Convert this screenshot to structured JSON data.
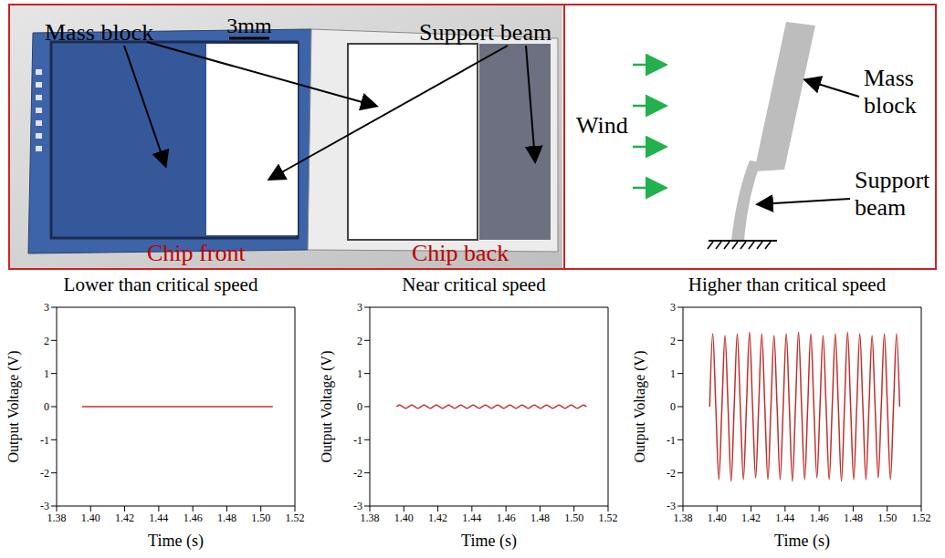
{
  "figure": {
    "photo_labels": {
      "mass_block": "Mass block",
      "scale": "3mm",
      "support_beam": "Support beam",
      "chip_front": "Chip front",
      "chip_back": "Chip back"
    },
    "schematic": {
      "wind": "Wind",
      "mass_block": "Mass block",
      "support_beam": "Support beam"
    }
  },
  "chart_data": [
    {
      "type": "line",
      "title": "Lower than critical speed",
      "x_label": "Time (s)",
      "y_label": "Output Voltage (V)",
      "color": "#c0302b",
      "x": [
        1.395,
        1.507
      ],
      "values": [
        0,
        0
      ],
      "xlim": [
        1.38,
        1.52
      ],
      "ylim": [
        -3,
        3
      ],
      "xticks": [
        1.38,
        {
          "value": 1.4,
          "label": "1.40"
        },
        1.42,
        1.44,
        1.46,
        1.48,
        {
          "value": 1.5,
          "label": "1.50"
        },
        1.52
      ],
      "yticks": [
        -3,
        -2,
        -1,
        0,
        1,
        2,
        3
      ]
    },
    {
      "type": "line",
      "title": "Near critical speed",
      "x_label": "Time (s)",
      "y_label": "Output Voltage (V)",
      "color": "#c0302b",
      "x": [
        1.3957,
        1.3975,
        1.3993,
        1.4011,
        1.4029,
        1.4047,
        1.4065,
        1.4083,
        1.4101,
        1.4119,
        1.4137,
        1.4155,
        1.4173,
        1.4191,
        1.4209,
        1.4227,
        1.4245,
        1.4263,
        1.4281,
        1.4299,
        1.4317,
        1.4335,
        1.4353,
        1.4371,
        1.4389,
        1.4407,
        1.4425,
        1.4443,
        1.4461,
        1.4479,
        1.4497,
        1.4515,
        1.4533,
        1.4551,
        1.4569,
        1.4587,
        1.4605,
        1.4623,
        1.4641,
        1.4659,
        1.4677,
        1.4695,
        1.4713,
        1.4731,
        1.4749,
        1.4767,
        1.4785,
        1.4803,
        1.4821,
        1.4839,
        1.4857,
        1.4875,
        1.4893,
        1.4911,
        1.4929,
        1.4947,
        1.4965,
        1.4983,
        1.5001,
        1.5019,
        1.5037,
        1.5055,
        1.5073
      ],
      "values": [
        0,
        0.05,
        0,
        -0.05,
        0,
        0.05,
        0,
        -0.05,
        0,
        0.05,
        0,
        -0.05,
        0,
        0.05,
        0,
        -0.05,
        0,
        0.05,
        0,
        -0.05,
        0,
        0.05,
        0,
        -0.05,
        0,
        0.05,
        0,
        -0.05,
        0,
        0.05,
        0,
        -0.05,
        0,
        0.05,
        0,
        -0.05,
        0,
        0.05,
        0,
        -0.05,
        0,
        0.05,
        0,
        -0.05,
        0,
        0.05,
        0,
        -0.05,
        0,
        0.05,
        0,
        -0.05,
        0,
        0.05,
        0,
        -0.05,
        0,
        0.05,
        0,
        -0.05,
        0,
        0.05,
        0
      ],
      "xlim": [
        1.38,
        1.52
      ],
      "ylim": [
        -3,
        3
      ],
      "xticks": [
        1.38,
        {
          "value": 1.4,
          "label": "1.40"
        },
        1.42,
        1.44,
        1.46,
        1.48,
        {
          "value": 1.5,
          "label": "1.50"
        },
        1.52
      ],
      "yticks": [
        -3,
        -2,
        -1,
        0,
        1,
        2,
        3
      ]
    },
    {
      "type": "line",
      "title": "Higher than critical speed",
      "x_label": "Time (s)",
      "y_label": "Output Voltage (V)",
      "color": "#c0302b",
      "x": [
        1.3957,
        1.3975,
        1.3993,
        1.4011,
        1.4029,
        1.4047,
        1.4065,
        1.4083,
        1.4101,
        1.4119,
        1.4137,
        1.4155,
        1.4173,
        1.4191,
        1.4209,
        1.4227,
        1.4245,
        1.4263,
        1.4281,
        1.4299,
        1.4317,
        1.4335,
        1.4353,
        1.4371,
        1.4389,
        1.4407,
        1.4425,
        1.4443,
        1.4461,
        1.4479,
        1.4497,
        1.4515,
        1.4533,
        1.4551,
        1.4569,
        1.4587,
        1.4605,
        1.4623,
        1.4641,
        1.4659,
        1.4677,
        1.4695,
        1.4713,
        1.4731,
        1.4749,
        1.4767,
        1.4785,
        1.4803,
        1.4821,
        1.4839,
        1.4857,
        1.4875,
        1.4893,
        1.4911,
        1.4929,
        1.4947,
        1.4965,
        1.4983,
        1.5001,
        1.5019,
        1.5037,
        1.5055,
        1.5073
      ],
      "values": [
        0,
        2.2,
        0,
        -2.2,
        0,
        2.15,
        0,
        -2.25,
        0,
        2.2,
        0,
        -2.2,
        0,
        2.25,
        0,
        -2.15,
        0,
        2.2,
        0,
        -2.2,
        0,
        2.15,
        0,
        -2.2,
        0,
        2.2,
        0,
        -2.25,
        0,
        2.25,
        0,
        -2.2,
        0,
        2.2,
        0,
        -2.15,
        0,
        2.15,
        0,
        -2.2,
        0,
        2.2,
        0,
        -2.25,
        0,
        2.25,
        0,
        -2.2,
        0,
        2.2,
        0,
        -2.2,
        0,
        2.15,
        0,
        -2.15,
        0,
        2.2,
        0,
        -2.2,
        0,
        2.2,
        0
      ],
      "xlim": [
        1.38,
        1.52
      ],
      "ylim": [
        -3,
        3
      ],
      "xticks": [
        1.38,
        {
          "value": 1.4,
          "label": "1.40"
        },
        1.42,
        1.44,
        1.46,
        1.48,
        {
          "value": 1.5,
          "label": "1.50"
        },
        1.52
      ],
      "yticks": [
        -3,
        -2,
        -1,
        0,
        1,
        2,
        3
      ]
    }
  ]
}
